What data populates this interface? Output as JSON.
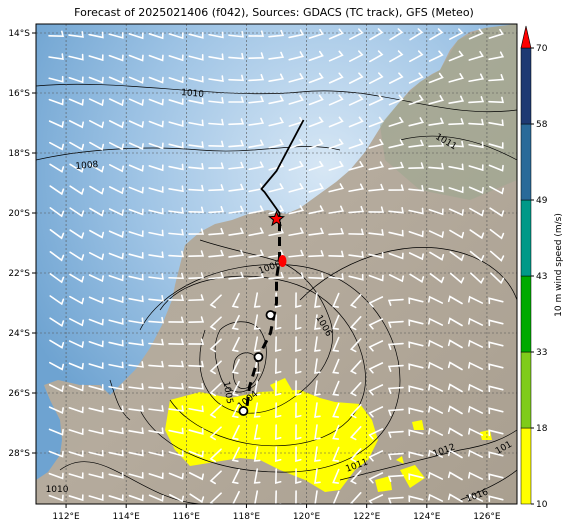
{
  "title": "Forecast of 2025021406 (f042), Sources: GDACS (TC track), GFS (Meteo)",
  "map": {
    "lon_ticks": [
      "112°E",
      "114°E",
      "116°E",
      "118°E",
      "120°E",
      "122°E",
      "124°E",
      "126°E"
    ],
    "lat_ticks": [
      "14°S",
      "16°S",
      "18°S",
      "20°S",
      "22°S",
      "24°S",
      "26°S",
      "28°S"
    ],
    "lon_values": [
      112,
      114,
      116,
      118,
      120,
      122,
      124,
      126
    ],
    "lat_values": [
      14,
      16,
      18,
      20,
      22,
      24,
      26,
      28
    ],
    "extent": {
      "lon_min": 111,
      "lon_max": 127,
      "lat_min": 29.7,
      "lat_max": 13.7
    },
    "colors": {
      "ocean": "#7aaed8",
      "land": "#b0a898",
      "rain": "#ffff00",
      "track": "#000000",
      "marker": "#ff0000"
    }
  },
  "contour_labels": [
    {
      "text": "1010",
      "lon": 116.2,
      "lat": 16.1,
      "rot": 5
    },
    {
      "text": "1008",
      "lon": 112.7,
      "lat": 18.5,
      "rot": -5
    },
    {
      "text": "1011",
      "lon": 124.6,
      "lat": 17.7,
      "rot": 30
    },
    {
      "text": "1006",
      "lon": 118.8,
      "lat": 21.9,
      "rot": -20
    },
    {
      "text": "1006",
      "lon": 120.5,
      "lat": 23.8,
      "rot": 60
    },
    {
      "text": "1005",
      "lon": 117.3,
      "lat": 26.0,
      "rot": 80
    },
    {
      "text": "1004",
      "lon": 118.1,
      "lat": 26.3,
      "rot": -40
    },
    {
      "text": "1011",
      "lon": 121.7,
      "lat": 28.5,
      "rot": -20
    },
    {
      "text": "1012",
      "lon": 124.6,
      "lat": 28.0,
      "rot": -20
    },
    {
      "text": "1010",
      "lon": 111.7,
      "lat": 29.3,
      "rot": 0
    },
    {
      "text": "1016",
      "lon": 125.7,
      "lat": 29.5,
      "rot": -20
    },
    {
      "text": "101",
      "lon": 126.6,
      "lat": 27.9,
      "rot": -30
    }
  ],
  "track": {
    "points": [
      [
        119.9,
        16.9
      ],
      [
        119.0,
        18.6
      ],
      [
        118.5,
        19.2
      ],
      [
        118.6,
        19.3
      ],
      [
        119.1,
        20.0
      ],
      [
        119.1,
        20.3
      ],
      [
        119.1,
        21.5
      ],
      [
        119.0,
        22.2
      ],
      [
        119.0,
        23.0
      ],
      [
        118.8,
        24.0
      ],
      [
        118.4,
        24.8
      ],
      [
        118.1,
        25.8
      ],
      [
        118.0,
        26.6
      ]
    ],
    "circles": [
      [
        118.8,
        23.4
      ],
      [
        118.4,
        24.8
      ],
      [
        117.9,
        26.6
      ]
    ],
    "star": [
      119.0,
      20.2
    ],
    "red_dot": [
      119.2,
      21.6
    ]
  },
  "colorbar": {
    "label": "10 m wind speed (m/s)",
    "ticks": [
      "10",
      "18",
      "33",
      "43",
      "49",
      "58",
      "70"
    ],
    "colors": [
      "#ffff00",
      "#7fcc1a",
      "#00aa00",
      "#009988",
      "#2a6a99",
      "#1e3a73"
    ],
    "top_color": "#ff0000"
  }
}
